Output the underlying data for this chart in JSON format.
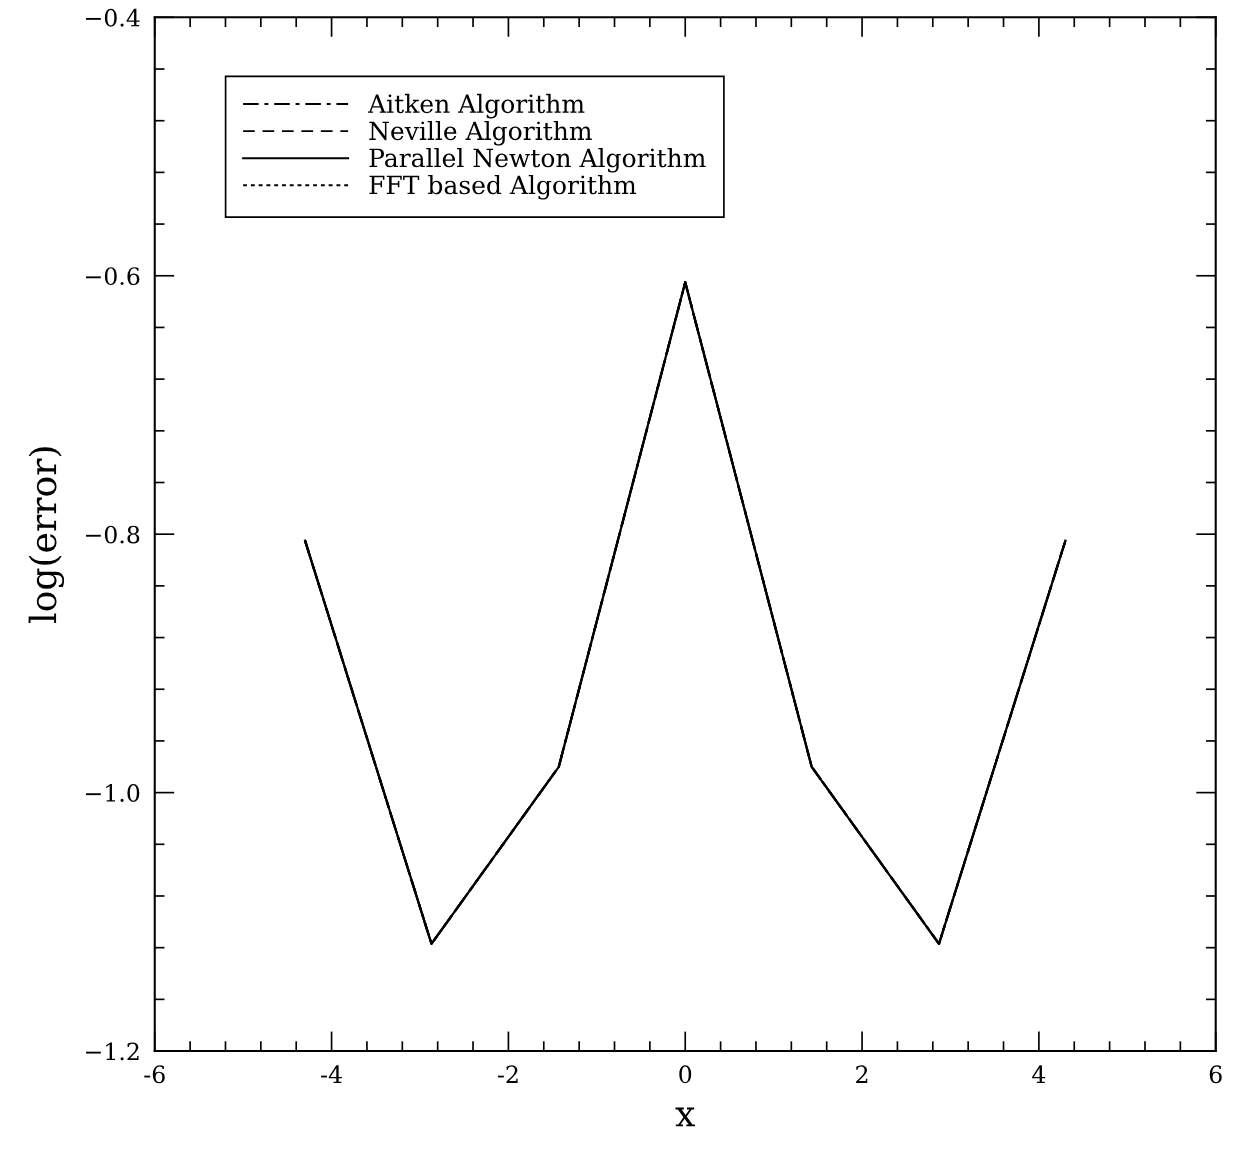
{
  "chart_data": {
    "type": "line",
    "xlabel": "x",
    "ylabel": "log(error)",
    "x": [
      -4.3,
      -2.87,
      -1.43,
      0,
      1.43,
      2.87,
      4.3
    ],
    "series": [
      {
        "name": "Aitken Algorithm",
        "color": "#000000",
        "line_style": "dashdot",
        "values": [
          -0.805,
          -1.117,
          -0.98,
          -0.605,
          -0.98,
          -1.117,
          -0.805
        ]
      },
      {
        "name": "Neville Algorithm",
        "color": "#000000",
        "line_style": "dashed",
        "values": [
          -0.805,
          -1.117,
          -0.98,
          -0.605,
          -0.98,
          -1.117,
          -0.805
        ]
      },
      {
        "name": "Parallel Newton Algorithm",
        "color": "#000000",
        "line_style": "solid",
        "values": [
          -0.805,
          -1.117,
          -0.98,
          -0.605,
          -0.98,
          -1.117,
          -0.805
        ]
      },
      {
        "name": "FFT based Algorithm",
        "color": "#000000",
        "line_style": "dotted",
        "values": [
          -0.805,
          -1.117,
          -0.98,
          -0.605,
          -0.98,
          -1.117,
          -0.805
        ]
      }
    ],
    "xlim": [
      -6,
      6
    ],
    "xticks": [
      -6,
      -4,
      -2,
      0,
      2,
      4,
      6
    ],
    "ylim": [
      -1.2,
      -0.4
    ],
    "yticks": [
      {
        "value": -1.2,
        "label": "−1.2"
      },
      {
        "value": -1.0,
        "label": "−1.0"
      },
      {
        "value": -0.8,
        "label": "−0.8"
      },
      {
        "value": -0.6,
        "label": "−0.6"
      },
      {
        "value": -0.4,
        "label": "−0.4"
      }
    ],
    "grid": false,
    "legend": "top left",
    "marker": "none"
  }
}
